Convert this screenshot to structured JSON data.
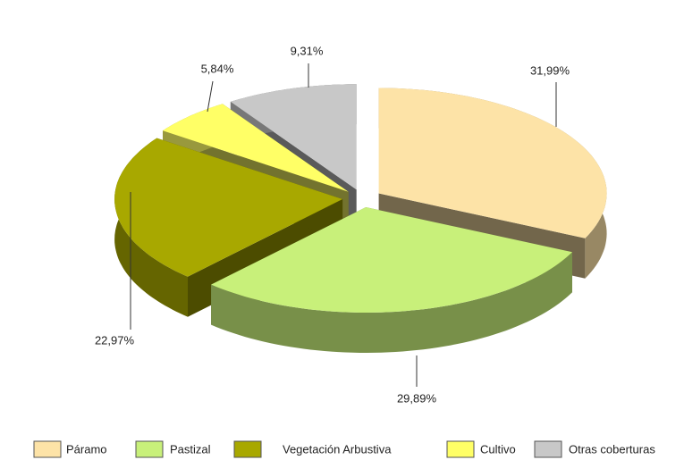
{
  "chart_data": {
    "type": "pie3d",
    "categories": [
      "Páramo",
      "Pastizal",
      "Vegetación Arbustiva",
      "Cultivo",
      "Otras coberturas"
    ],
    "values": [
      31.99,
      29.89,
      22.97,
      5.84,
      9.31
    ],
    "value_labels": [
      "31,99%",
      "29,89%",
      "22,97%",
      "5,84%",
      "9,31%"
    ],
    "colors": [
      "#fde3a7",
      "#c8f07a",
      "#a8a800",
      "#ffff66",
      "#c8c8c8"
    ],
    "legend": "bottom"
  }
}
